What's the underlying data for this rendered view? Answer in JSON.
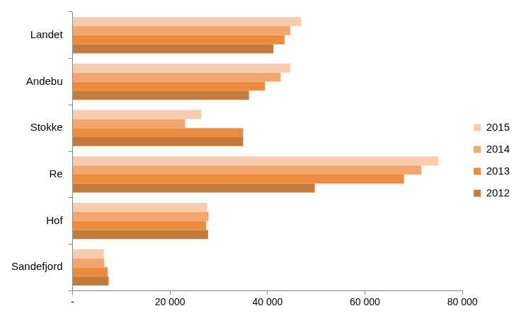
{
  "chart_data": {
    "type": "bar",
    "orientation": "horizontal",
    "categories": [
      "Landet",
      "Andebu",
      "Stokke",
      "Re",
      "Hof",
      "Sandefjord"
    ],
    "series": [
      {
        "name": "2015",
        "color": "#f8cbad",
        "values": [
          46900,
          44700,
          26400,
          75100,
          27600,
          6400
        ]
      },
      {
        "name": "2014",
        "color": "#f4a66f",
        "values": [
          44700,
          42700,
          23100,
          71600,
          27900,
          6500
        ]
      },
      {
        "name": "2013",
        "color": "#ec8a3e",
        "values": [
          43500,
          39500,
          35000,
          68000,
          27400,
          7200
        ]
      },
      {
        "name": "2012",
        "color": "#c47a3c",
        "values": [
          41200,
          36200,
          35000,
          49700,
          27800,
          7400
        ]
      }
    ],
    "xlim": [
      0,
      80000
    ],
    "xticks": [
      {
        "value": 0,
        "label": "-"
      },
      {
        "value": 20000,
        "label": "20 000"
      },
      {
        "value": 40000,
        "label": "40 000"
      },
      {
        "value": 60000,
        "label": "60 000"
      },
      {
        "value": 80000,
        "label": "80 000"
      }
    ],
    "grid": false,
    "legend": "right"
  }
}
